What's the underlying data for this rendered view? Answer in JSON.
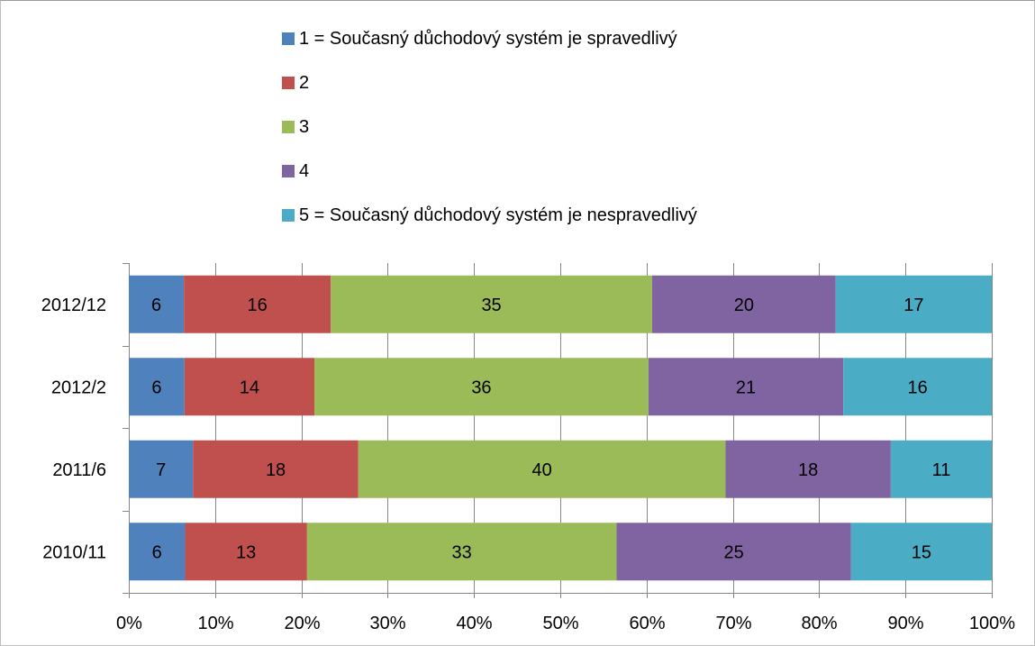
{
  "chart_data": {
    "type": "bar",
    "orientation": "horizontal",
    "stacked": "percent",
    "categories": [
      "2012/12",
      "2012/2",
      "2011/6",
      "2010/11"
    ],
    "series": [
      {
        "name": "1 = Současný důchodový systém je spravedlivý",
        "color": "#4f81bd",
        "values": [
          6,
          6,
          7,
          6
        ]
      },
      {
        "name": "2",
        "color": "#c0504d",
        "values": [
          16,
          14,
          18,
          13
        ]
      },
      {
        "name": "3",
        "color": "#9bbb59",
        "values": [
          35,
          36,
          40,
          33
        ]
      },
      {
        "name": "4",
        "color": "#8064a2",
        "values": [
          20,
          21,
          18,
          25
        ]
      },
      {
        "name": "5 = Současný důchodový systém je nespravedlivý",
        "color": "#4bacc6",
        "values": [
          17,
          16,
          11,
          15
        ]
      }
    ],
    "xticks": [
      "0%",
      "10%",
      "20%",
      "30%",
      "40%",
      "50%",
      "60%",
      "70%",
      "80%",
      "90%",
      "100%"
    ],
    "xlim": [
      0,
      100
    ],
    "grid": "vertical",
    "legend": "top"
  }
}
